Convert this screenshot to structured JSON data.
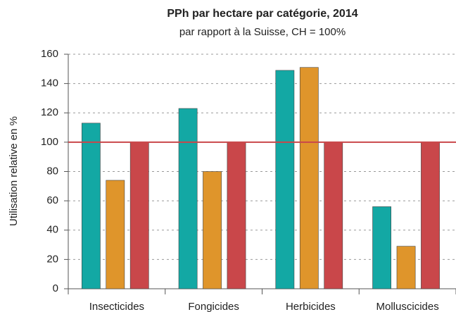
{
  "chart_data": {
    "type": "bar",
    "title": "PPh par hectare par catégorie, 2014",
    "subtitle": "par rapport à la Suisse, CH = 100%",
    "y_label": "Utilisation relative en %",
    "categories": [
      "Insecticides",
      "Fongicides",
      "Herbicides",
      "Molluscicides"
    ],
    "series": [
      {
        "color": "#13a8a4",
        "values": [
          113,
          123,
          149,
          56
        ]
      },
      {
        "color": "#df952b",
        "values": [
          74,
          80,
          151,
          29
        ]
      },
      {
        "color": "#c9474a",
        "values": [
          100,
          100,
          100,
          100
        ]
      }
    ],
    "reference_line": {
      "value": 100,
      "color": "#c9474a"
    },
    "ylim": [
      0,
      160
    ],
    "yticks": [
      0,
      20,
      40,
      60,
      80,
      100,
      120,
      140,
      160
    ],
    "grid": true
  }
}
